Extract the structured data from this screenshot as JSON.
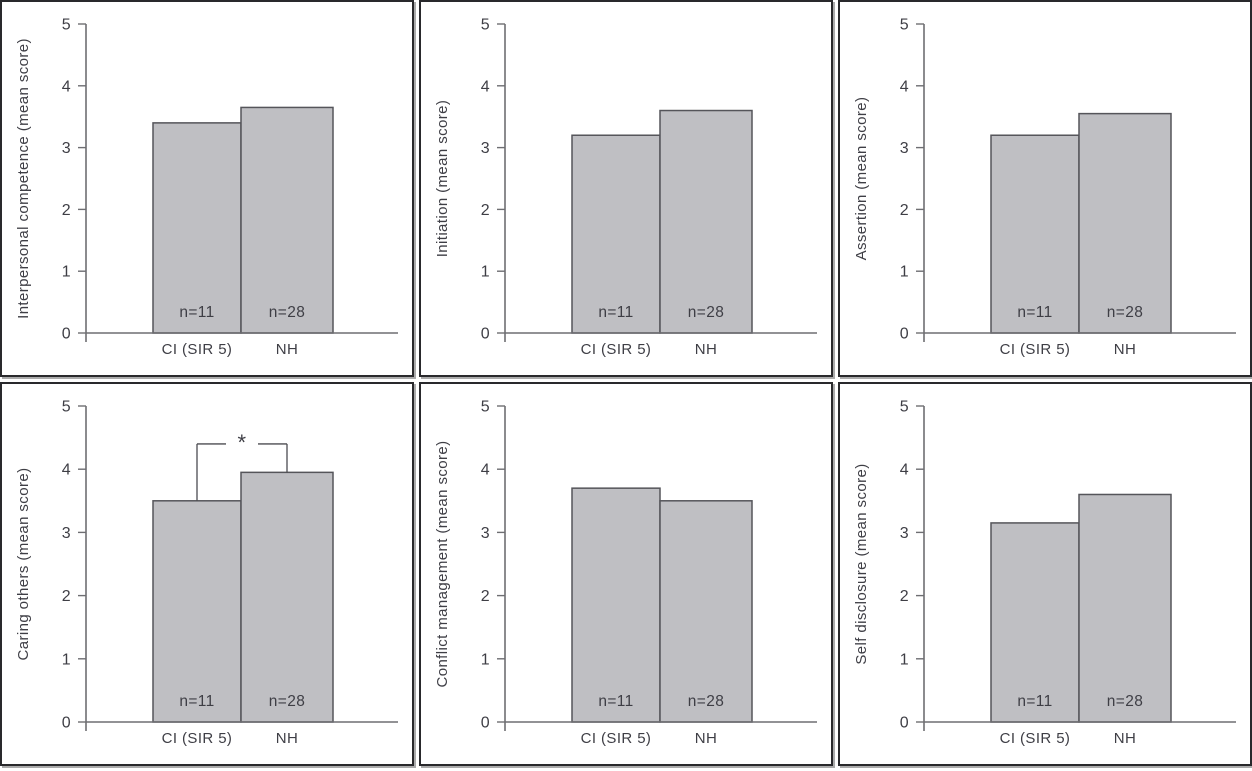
{
  "figure": {
    "colors": {
      "bar_fill": "#bfbfc3",
      "bar_stroke": "#55555a",
      "axis": "#6e6e72",
      "text": "#3e3e45",
      "panel_border": "#29292c",
      "significance": "#4c4c50"
    }
  },
  "chart_data": [
    {
      "type": "bar",
      "id": "interpersonal-competence",
      "ylabel": "Interpersonal competence (mean score)",
      "categories": [
        "CI (SIR 5)",
        "NH"
      ],
      "values": [
        3.4,
        3.65
      ],
      "bar_labels": [
        "n=11",
        "n=28"
      ],
      "ylim": [
        0,
        5
      ],
      "yticks": [
        0,
        1,
        2,
        3,
        4,
        5
      ],
      "grid": false,
      "significance": null
    },
    {
      "type": "bar",
      "id": "initiation",
      "ylabel": "Initiation (mean score)",
      "categories": [
        "CI (SIR 5)",
        "NH"
      ],
      "values": [
        3.2,
        3.6
      ],
      "bar_labels": [
        "n=11",
        "n=28"
      ],
      "ylim": [
        0,
        5
      ],
      "yticks": [
        0,
        1,
        2,
        3,
        4,
        5
      ],
      "grid": false,
      "significance": null
    },
    {
      "type": "bar",
      "id": "assertion",
      "ylabel": "Assertion (mean score)",
      "categories": [
        "CI (SIR 5)",
        "NH"
      ],
      "values": [
        3.2,
        3.55
      ],
      "bar_labels": [
        "n=11",
        "n=28"
      ],
      "ylim": [
        0,
        5
      ],
      "yticks": [
        0,
        1,
        2,
        3,
        4,
        5
      ],
      "grid": false,
      "significance": null
    },
    {
      "type": "bar",
      "id": "caring-others",
      "ylabel": "Caring others (mean score)",
      "categories": [
        "CI (SIR 5)",
        "NH"
      ],
      "values": [
        3.5,
        3.95
      ],
      "bar_labels": [
        "n=11",
        "n=28"
      ],
      "ylim": [
        0,
        5
      ],
      "yticks": [
        0,
        1,
        2,
        3,
        4,
        5
      ],
      "grid": false,
      "significance": {
        "between": [
          0,
          1
        ],
        "label": "*",
        "bracket_y": 4.4
      }
    },
    {
      "type": "bar",
      "id": "conflict-management",
      "ylabel": "Conflict management (mean score)",
      "categories": [
        "CI (SIR 5)",
        "NH"
      ],
      "values": [
        3.7,
        3.5
      ],
      "bar_labels": [
        "n=11",
        "n=28"
      ],
      "ylim": [
        0,
        5
      ],
      "yticks": [
        0,
        1,
        2,
        3,
        4,
        5
      ],
      "grid": false,
      "significance": null
    },
    {
      "type": "bar",
      "id": "self-disclosure",
      "ylabel": "Self disclosure (mean score)",
      "categories": [
        "CI (SIR 5)",
        "NH"
      ],
      "values": [
        3.15,
        3.6
      ],
      "bar_labels": [
        "n=11",
        "n=28"
      ],
      "ylim": [
        0,
        5
      ],
      "yticks": [
        0,
        1,
        2,
        3,
        4,
        5
      ],
      "grid": false,
      "significance": null
    }
  ]
}
